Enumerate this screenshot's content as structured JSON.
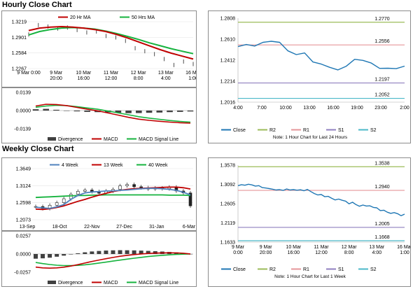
{
  "sections": {
    "hourly_title": "Hourly Close Chart",
    "weekly_title": "Weekly Close Chart"
  },
  "colors": {
    "ma_fast": "#c00000",
    "ma_slow": "#16b33e",
    "price_box": "#222222",
    "close": "#1f77b4",
    "r2": "#9bbb59",
    "r1": "#e6969a",
    "s1": "#8f7fbf",
    "s2": "#4bb8c8",
    "macd": "#c00000",
    "signal": "#16b33e",
    "divergence": "#404040",
    "w4": "#4f81bd",
    "w13": "#c00000",
    "w40": "#16b33e"
  },
  "chart_data": [
    {
      "id": "hourly-price",
      "type": "line",
      "legend": [
        "20 Hr MA",
        "50 Hrs MA"
      ],
      "x_ticks": [
        [
          "9 Mar 0:00",
          ""
        ],
        [
          "9 Mar",
          "20:00"
        ],
        [
          "10 Mar",
          "16:00"
        ],
        [
          "11 Mar",
          "12:00"
        ],
        [
          "12 Mar",
          "8:00"
        ],
        [
          "13 Mar",
          "4:00"
        ],
        [
          "16 Mar",
          "1:00"
        ]
      ],
      "ylim": [
        1.2267,
        1.3219
      ],
      "y_ticks": [
        "1.3219",
        "1.2901",
        "1.2584",
        "1.2267"
      ],
      "series": [
        {
          "name": "20 Hr MA",
          "style": "line",
          "values": [
            1.304,
            1.309,
            1.311,
            1.312,
            1.311,
            1.309,
            1.306,
            1.302,
            1.296,
            1.289,
            1.281,
            1.273,
            1.265,
            1.258,
            1.252,
            1.246
          ]
        },
        {
          "name": "50 Hrs MA",
          "style": "line",
          "values": [
            1.295,
            1.302,
            1.306,
            1.309,
            1.31,
            1.309,
            1.307,
            1.303,
            1.298,
            1.292,
            1.286,
            1.279,
            1.273,
            1.267,
            1.262,
            1.257
          ]
        },
        {
          "name": "Close",
          "style": "bars",
          "values": [
            1.296,
            1.315,
            1.312,
            1.308,
            1.31,
            1.305,
            1.3,
            1.302,
            1.293,
            1.29,
            1.283,
            1.268,
            1.262,
            1.256,
            1.246,
            1.234,
            1.241,
            1.236
          ]
        }
      ]
    },
    {
      "id": "hourly-macd",
      "type": "line",
      "legend": [
        "Divergence",
        "MACD",
        "MACD Signal Line"
      ],
      "ylim": [
        -0.0139,
        0.0139
      ],
      "y_ticks": [
        "0.0139",
        "0.0000",
        "-0.0139"
      ],
      "series": [
        {
          "name": "MACD",
          "values": [
            0.0035,
            0.0048,
            0.0046,
            0.0038,
            0.0024,
            0.001,
            -0.0002,
            -0.0018,
            -0.0035,
            -0.0052,
            -0.0066,
            -0.0075,
            -0.0082,
            -0.0088,
            -0.0093,
            -0.0096
          ]
        },
        {
          "name": "MACD Signal Line",
          "values": [
            0.0025,
            0.0035,
            0.004,
            0.0038,
            0.003,
            0.002,
            0.001,
            -0.0004,
            -0.0018,
            -0.0032,
            -0.0047,
            -0.0058,
            -0.0067,
            -0.0076,
            -0.0083,
            -0.0089
          ]
        },
        {
          "name": "Divergence",
          "style": "bars",
          "values": [
            0.001,
            0.0013,
            0.0006,
            0.0,
            -0.0006,
            -0.001,
            -0.0012,
            -0.0014,
            -0.0017,
            -0.002,
            -0.0019,
            -0.0017,
            -0.0015,
            -0.0012,
            -0.001,
            -0.0007
          ]
        }
      ]
    },
    {
      "id": "hourly-24h",
      "type": "line",
      "legend": [
        "Close",
        "R2",
        "R1",
        "S1",
        "S2"
      ],
      "note": "Note: 1 Hour Chart for Last 24 Hours",
      "x_ticks": [
        "4:00",
        "7:00",
        "10:00",
        "13:00",
        "16:00",
        "19:00",
        "23:00",
        "2:00"
      ],
      "ylim": [
        1.2016,
        1.2808
      ],
      "y_ticks": [
        "1.2808",
        "1.2610",
        "1.2412",
        "1.2214",
        "1.2016"
      ],
      "levels": [
        {
          "name": "R2",
          "value": 1.277,
          "label": "1.2770"
        },
        {
          "name": "R1",
          "value": 1.2556,
          "label": "1.2556"
        },
        {
          "name": "S1",
          "value": 1.2197,
          "label": "1.2197"
        },
        {
          "name": "S2",
          "value": 1.2052,
          "label": "1.2052"
        }
      ],
      "series": [
        {
          "name": "Close",
          "values": [
            1.254,
            1.256,
            1.2545,
            1.258,
            1.259,
            1.258,
            1.25,
            1.2465,
            1.248,
            1.2395,
            1.2375,
            1.2345,
            1.232,
            1.2355,
            1.242,
            1.241,
            1.2385,
            1.2335,
            1.2336,
            1.2332,
            1.2356
          ]
        }
      ]
    },
    {
      "id": "weekly-price",
      "type": "line",
      "legend": [
        "4 Week",
        "13 Week",
        "40 Week"
      ],
      "x_ticks": [
        "13-Sep",
        "18-Oct",
        "22-Nov",
        "27-Dec",
        "31-Jan",
        "6-Mar"
      ],
      "ylim": [
        1.2073,
        1.3649
      ],
      "y_ticks": [
        "1.3649",
        "1.3124",
        "1.2598",
        "1.2073"
      ],
      "series": [
        {
          "name": "4 Week",
          "values": [
            1.246,
            1.244,
            1.242,
            1.247,
            1.254,
            1.27,
            1.282,
            1.29,
            1.293,
            1.294,
            1.296,
            1.296,
            1.298,
            1.299,
            1.301,
            1.303,
            1.304,
            1.304,
            1.303,
            1.301,
            1.298,
            1.292,
            1.284
          ]
        },
        {
          "name": "13 Week",
          "values": [
            1.24,
            1.239,
            1.241,
            1.245,
            1.25,
            1.257,
            1.264,
            1.27,
            1.277,
            1.283,
            1.289,
            1.294,
            1.298,
            1.301,
            1.303,
            1.304,
            1.305,
            1.306,
            1.307,
            1.308,
            1.308,
            1.306,
            1.302
          ]
        },
        {
          "name": "40 Week",
          "values": [
            1.276,
            1.277,
            1.278,
            1.279,
            1.28,
            1.281,
            1.282,
            1.282,
            1.283,
            1.283,
            1.284,
            1.284,
            1.284,
            1.284,
            1.284,
            1.284,
            1.284,
            1.284,
            1.284,
            1.283,
            1.283,
            1.283,
            1.282
          ]
        },
        {
          "name": "Close",
          "style": "candles",
          "values": [
            1.248,
            1.242,
            1.252,
            1.26,
            1.272,
            1.286,
            1.295,
            1.299,
            1.294,
            1.289,
            1.296,
            1.301,
            1.312,
            1.316,
            1.309,
            1.306,
            1.302,
            1.305,
            1.303,
            1.308,
            1.296,
            1.29,
            1.25
          ]
        }
      ]
    },
    {
      "id": "weekly-macd",
      "type": "line",
      "legend": [
        "Divergence",
        "MACD",
        "MACD Signal Line"
      ],
      "ylim": [
        -0.0257,
        0.0257
      ],
      "y_ticks": [
        "0.0257",
        "0.0000",
        "-0.0257"
      ],
      "series": [
        {
          "name": "MACD",
          "values": [
            -0.0185,
            -0.0196,
            -0.02,
            -0.0196,
            -0.0186,
            -0.017,
            -0.015,
            -0.0128,
            -0.0105,
            -0.0085,
            -0.0066,
            -0.0048,
            -0.0032,
            -0.0019,
            -0.0008,
            0.0001,
            0.0008,
            0.0013,
            0.0016,
            0.0017,
            0.0016,
            0.0011,
            0.0001
          ]
        },
        {
          "name": "MACD Signal Line",
          "values": [
            -0.012,
            -0.0135,
            -0.0148,
            -0.0158,
            -0.0163,
            -0.0164,
            -0.016,
            -0.0152,
            -0.0141,
            -0.0128,
            -0.0115,
            -0.01,
            -0.0086,
            -0.0072,
            -0.0059,
            -0.0047,
            -0.0036,
            -0.0027,
            -0.0019,
            -0.0012,
            -0.0006,
            -0.0002,
            0.0
          ]
        },
        {
          "name": "Divergence",
          "style": "bars",
          "values": [
            -0.0066,
            -0.0061,
            -0.0052,
            -0.0038,
            -0.0023,
            -0.0006,
            0.001,
            0.0024,
            0.0036,
            0.0043,
            0.0049,
            0.0052,
            0.0054,
            0.0053,
            0.0051,
            0.0048,
            0.0044,
            0.004,
            0.0035,
            0.0029,
            0.0022,
            0.0013,
            0.0001
          ]
        }
      ]
    },
    {
      "id": "weekly-1w",
      "type": "line",
      "legend": [
        "Close",
        "R2",
        "R1",
        "S1",
        "S2"
      ],
      "note": "Note: 1 Hour Chart for Last 1 Week",
      "x_ticks": [
        [
          "9 Mar",
          "0:00"
        ],
        [
          "9 Mar",
          "20:00"
        ],
        [
          "10 Mar",
          "16:00"
        ],
        [
          "11 Mar",
          "12:00"
        ],
        [
          "12 Mar",
          "8:00"
        ],
        [
          "13 Mar",
          "4:00"
        ],
        [
          "16 Mar",
          "1:00"
        ]
      ],
      "ylim": [
        1.1633,
        1.3578
      ],
      "y_ticks": [
        "1.3578",
        "1.3092",
        "1.2605",
        "1.2119",
        "1.1633"
      ],
      "levels": [
        {
          "name": "R2",
          "value": 1.3538,
          "label": "1.3538"
        },
        {
          "name": "R1",
          "value": 1.294,
          "label": "1.2940"
        },
        {
          "name": "S1",
          "value": 1.2005,
          "label": "1.2005"
        },
        {
          "name": "S2",
          "value": 1.1668,
          "label": "1.1668"
        }
      ],
      "series": [
        {
          "name": "Close",
          "values": [
            1.306,
            1.3085,
            1.307,
            1.3095,
            1.308,
            1.305,
            1.306,
            1.301,
            1.3,
            1.2985,
            1.297,
            1.295,
            1.296,
            1.294,
            1.2975,
            1.295,
            1.296,
            1.2945,
            1.2955,
            1.293,
            1.2965,
            1.291,
            1.286,
            1.2825,
            1.2835,
            1.278,
            1.279,
            1.274,
            1.27,
            1.272,
            1.269,
            1.267,
            1.26,
            1.264,
            1.258,
            1.254,
            1.257,
            1.2545,
            1.255,
            1.251,
            1.25,
            1.243,
            1.244,
            1.239,
            1.236,
            1.238,
            1.235,
            1.23,
            1.234
          ]
        }
      ]
    }
  ]
}
